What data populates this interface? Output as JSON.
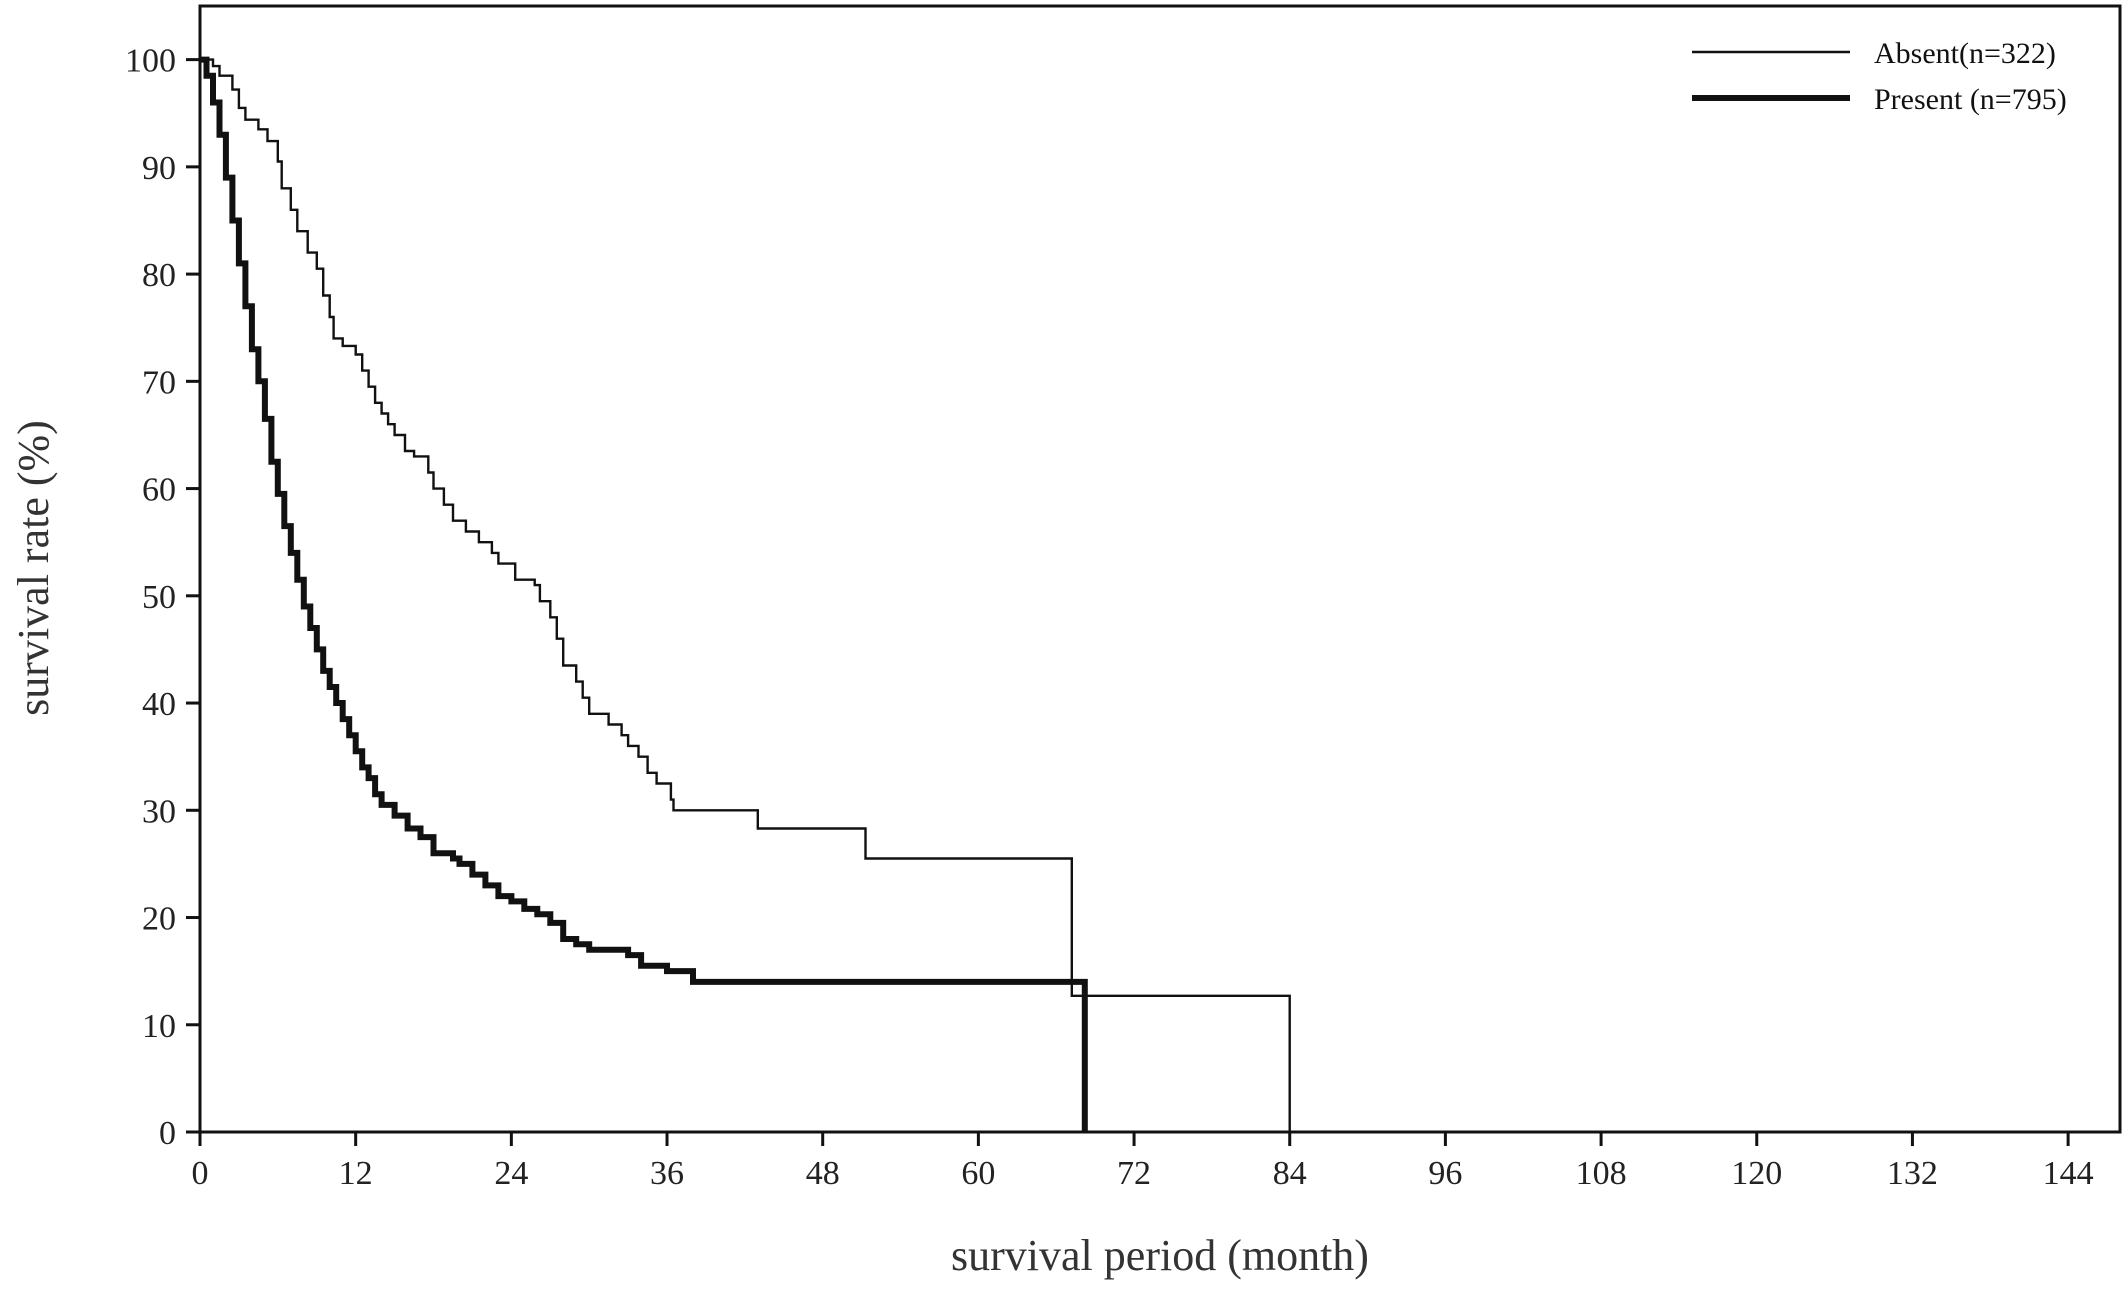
{
  "chart_data": {
    "type": "line",
    "step": true,
    "xlabel": "survival period (month)",
    "ylabel": "survival rate (%)",
    "xlim": [
      0,
      148
    ],
    "ylim": [
      0,
      105
    ],
    "xticks": [
      0,
      12,
      24,
      36,
      48,
      60,
      72,
      84,
      96,
      108,
      120,
      132,
      144
    ],
    "yticks": [
      0,
      10,
      20,
      30,
      40,
      50,
      60,
      70,
      80,
      90,
      100
    ],
    "grid": false,
    "legend_position": "top-right",
    "series": [
      {
        "name": "Absent(n=322)",
        "line_width": "thin",
        "color": "#111111",
        "points": [
          [
            0,
            100
          ],
          [
            1,
            99.4
          ],
          [
            1.5,
            98.5
          ],
          [
            2.5,
            97.2
          ],
          [
            3,
            95.5
          ],
          [
            3.5,
            94.4
          ],
          [
            4.5,
            93.5
          ],
          [
            5.2,
            92.4
          ],
          [
            6,
            90.5
          ],
          [
            6.3,
            88.0
          ],
          [
            7,
            86.0
          ],
          [
            7.5,
            84.0
          ],
          [
            8.3,
            82.0
          ],
          [
            9,
            80.5
          ],
          [
            9.5,
            78.0
          ],
          [
            10,
            76.0
          ],
          [
            10.3,
            74.0
          ],
          [
            11,
            73.3
          ],
          [
            12,
            72.5
          ],
          [
            12.5,
            71.0
          ],
          [
            13,
            69.5
          ],
          [
            13.5,
            68.0
          ],
          [
            14,
            67.0
          ],
          [
            14.5,
            66.0
          ],
          [
            15,
            65.0
          ],
          [
            15.8,
            63.5
          ],
          [
            16.5,
            63.0
          ],
          [
            17.6,
            61.5
          ],
          [
            18,
            60.0
          ],
          [
            18.8,
            58.5
          ],
          [
            19.5,
            57.0
          ],
          [
            20.5,
            56.0
          ],
          [
            21.5,
            55.0
          ],
          [
            22.5,
            54.0
          ],
          [
            23,
            53.0
          ],
          [
            24.3,
            51.5
          ],
          [
            25.8,
            51.0
          ],
          [
            26.2,
            49.5
          ],
          [
            27,
            48.0
          ],
          [
            27.5,
            46.0
          ],
          [
            28,
            43.5
          ],
          [
            29,
            42.0
          ],
          [
            29.5,
            40.5
          ],
          [
            30,
            39.0
          ],
          [
            31.5,
            38.0
          ],
          [
            32.5,
            37.0
          ],
          [
            33,
            36.0
          ],
          [
            33.8,
            35.0
          ],
          [
            34.5,
            33.5
          ],
          [
            35.2,
            32.5
          ],
          [
            36.3,
            31.0
          ],
          [
            36.5,
            30.0
          ],
          [
            43,
            28.3
          ],
          [
            51.3,
            25.5
          ],
          [
            67.2,
            12.7
          ],
          [
            84,
            0
          ]
        ]
      },
      {
        "name": "Present (n=795)",
        "line_width": "thick",
        "color": "#111111",
        "points": [
          [
            0,
            100
          ],
          [
            0.5,
            98.5
          ],
          [
            1,
            96.0
          ],
          [
            1.5,
            93.0
          ],
          [
            2,
            89.0
          ],
          [
            2.5,
            85.0
          ],
          [
            3,
            81.0
          ],
          [
            3.5,
            77.0
          ],
          [
            4,
            73.0
          ],
          [
            4.5,
            70.0
          ],
          [
            5,
            66.5
          ],
          [
            5.5,
            62.5
          ],
          [
            6,
            59.5
          ],
          [
            6.5,
            56.5
          ],
          [
            7,
            54.0
          ],
          [
            7.5,
            51.5
          ],
          [
            8,
            49.0
          ],
          [
            8.5,
            47.0
          ],
          [
            9,
            45.0
          ],
          [
            9.5,
            43.0
          ],
          [
            10,
            41.5
          ],
          [
            10.5,
            40.0
          ],
          [
            11,
            38.5
          ],
          [
            11.5,
            37.0
          ],
          [
            12,
            35.5
          ],
          [
            12.5,
            34.0
          ],
          [
            13,
            33.0
          ],
          [
            13.5,
            31.5
          ],
          [
            14,
            30.5
          ],
          [
            15,
            29.5
          ],
          [
            16,
            28.3
          ],
          [
            17,
            27.5
          ],
          [
            18,
            26.0
          ],
          [
            19.5,
            25.5
          ],
          [
            20,
            25.0
          ],
          [
            21,
            24.0
          ],
          [
            22,
            23.0
          ],
          [
            23,
            22.0
          ],
          [
            24,
            21.5
          ],
          [
            25,
            20.8
          ],
          [
            26,
            20.3
          ],
          [
            27,
            19.5
          ],
          [
            28,
            18.0
          ],
          [
            29,
            17.5
          ],
          [
            30,
            17.0
          ],
          [
            33,
            16.5
          ],
          [
            34,
            15.5
          ],
          [
            36,
            15.0
          ],
          [
            38,
            14.0
          ],
          [
            68.2,
            0
          ]
        ]
      }
    ]
  }
}
